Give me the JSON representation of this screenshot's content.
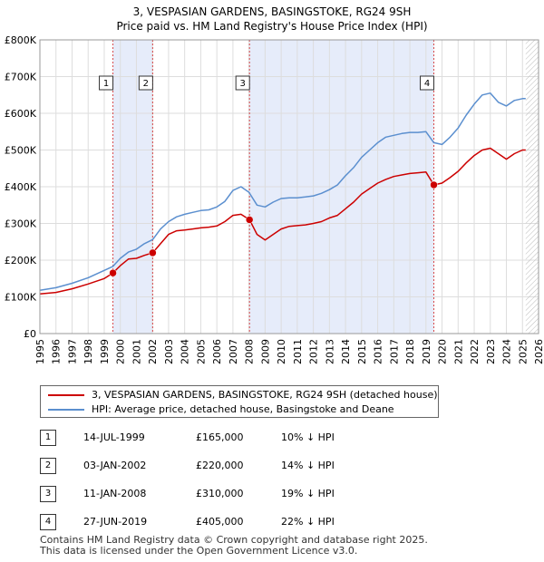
{
  "title_line1": "3, VESPASIAN GARDENS, BASINGSTOKE, RG24 9SH",
  "title_line2": "Price paid vs. HM Land Registry's House Price Index (HPI)",
  "legend": [
    {
      "label": "3, VESPASIAN GARDENS, BASINGSTOKE, RG24 9SH (detached house)",
      "color": "#cc0000"
    },
    {
      "label": "HPI: Average price, detached house, Basingstoke and Deane",
      "color": "#5b8fcf"
    }
  ],
  "sales": [
    {
      "num": "1",
      "date": "14-JUL-1999",
      "price": "£165,000",
      "hpi": "10% ↓ HPI"
    },
    {
      "num": "2",
      "date": "03-JAN-2002",
      "price": "£220,000",
      "hpi": "14% ↓ HPI"
    },
    {
      "num": "3",
      "date": "11-JAN-2008",
      "price": "£310,000",
      "hpi": "19% ↓ HPI"
    },
    {
      "num": "4",
      "date": "27-JUN-2019",
      "price": "£405,000",
      "hpi": "22% ↓ HPI"
    }
  ],
  "footer_line1": "Contains HM Land Registry data © Crown copyright and database right 2025.",
  "footer_line2": "This data is licensed under the Open Government Licence v3.0.",
  "chart_data": {
    "type": "line",
    "title": "3, VESPASIAN GARDENS, BASINGSTOKE, RG24 9SH",
    "subtitle": "Price paid vs. HM Land Registry's House Price Index (HPI)",
    "xlim": [
      1995,
      2026
    ],
    "ylim": [
      0,
      800000
    ],
    "x_ticks": [
      1995,
      1996,
      1997,
      1998,
      1999,
      2000,
      2001,
      2002,
      2003,
      2004,
      2005,
      2006,
      2007,
      2008,
      2009,
      2010,
      2011,
      2012,
      2013,
      2014,
      2015,
      2016,
      2017,
      2018,
      2019,
      2020,
      2021,
      2022,
      2023,
      2024,
      2025,
      2026
    ],
    "y_ticks": [
      0,
      100000,
      200000,
      300000,
      400000,
      500000,
      600000,
      700000,
      800000
    ],
    "y_tick_labels": [
      "£0",
      "£100K",
      "£200K",
      "£300K",
      "£400K",
      "£500K",
      "£600K",
      "£700K",
      "£800K"
    ],
    "grid": true,
    "colors": {
      "hpi": "#5b8fcf",
      "property": "#cc0000",
      "shade": "#e6ecfa",
      "marker_line": "#cc0000"
    },
    "shaded_periods": [
      [
        1999.54,
        2002.01
      ],
      [
        2008.03,
        2019.49
      ]
    ],
    "projection_from": 2025.2,
    "sale_markers": [
      {
        "label": "1",
        "x": 1999.54,
        "y": 165000
      },
      {
        "label": "2",
        "x": 2002.01,
        "y": 220000
      },
      {
        "label": "3",
        "x": 2008.03,
        "y": 310000
      },
      {
        "label": "4",
        "x": 2019.49,
        "y": 405000
      }
    ],
    "series": [
      {
        "name": "HPI: Average price, detached house, Basingstoke and Deane",
        "x": [
          1995,
          1996,
          1997,
          1998,
          1999,
          1999.54,
          2000,
          2000.5,
          2001,
          2001.5,
          2002.01,
          2002.5,
          2003,
          2003.5,
          2004,
          2004.5,
          2005,
          2005.5,
          2006,
          2006.5,
          2007,
          2007.5,
          2008,
          2008.5,
          2009,
          2009.5,
          2010,
          2010.5,
          2011,
          2011.5,
          2012,
          2012.5,
          2013,
          2013.5,
          2014,
          2014.5,
          2015,
          2015.5,
          2016,
          2016.5,
          2017,
          2017.5,
          2018,
          2018.5,
          2019,
          2019.49,
          2020,
          2020.5,
          2021,
          2021.5,
          2022,
          2022.5,
          2023,
          2023.5,
          2024,
          2024.5,
          2025,
          2025.2
        ],
        "values": [
          118000,
          125000,
          137000,
          152000,
          172000,
          183000,
          205000,
          222000,
          230000,
          245000,
          256000,
          285000,
          305000,
          318000,
          325000,
          330000,
          335000,
          337000,
          345000,
          360000,
          390000,
          400000,
          385000,
          350000,
          345000,
          358000,
          368000,
          370000,
          370000,
          372000,
          375000,
          382000,
          392000,
          405000,
          430000,
          452000,
          480000,
          500000,
          520000,
          535000,
          540000,
          545000,
          548000,
          548000,
          550000,
          520000,
          515000,
          535000,
          560000,
          595000,
          625000,
          650000,
          655000,
          630000,
          620000,
          635000,
          640000,
          640000
        ]
      },
      {
        "name": "3, VESPASIAN GARDENS, BASINGSTOKE, RG24 9SH (detached house)",
        "x": [
          1995,
          1996,
          1997,
          1998,
          1999,
          1999.54,
          2000,
          2000.5,
          2001,
          2001.5,
          2002.01,
          2002.5,
          2003,
          2003.5,
          2004,
          2004.5,
          2005,
          2005.5,
          2006,
          2006.5,
          2007,
          2007.5,
          2008.03,
          2008.5,
          2009,
          2009.5,
          2010,
          2010.5,
          2011,
          2011.5,
          2012,
          2012.5,
          2013,
          2013.5,
          2014,
          2014.5,
          2015,
          2015.5,
          2016,
          2016.5,
          2017,
          2017.5,
          2018,
          2018.5,
          2019,
          2019.49,
          2020,
          2020.5,
          2021,
          2021.5,
          2022,
          2022.5,
          2023,
          2023.5,
          2024,
          2024.5,
          2025,
          2025.2
        ],
        "values": [
          108000,
          112000,
          122000,
          135000,
          150000,
          165000,
          185000,
          203000,
          205000,
          213000,
          220000,
          245000,
          270000,
          280000,
          282000,
          285000,
          288000,
          290000,
          293000,
          305000,
          322000,
          325000,
          310000,
          270000,
          255000,
          270000,
          285000,
          292000,
          294000,
          296000,
          300000,
          305000,
          315000,
          322000,
          340000,
          358000,
          380000,
          395000,
          410000,
          420000,
          428000,
          432000,
          436000,
          438000,
          440000,
          405000,
          410000,
          425000,
          442000,
          465000,
          485000,
          500000,
          505000,
          490000,
          475000,
          490000,
          500000,
          500000
        ]
      }
    ]
  }
}
